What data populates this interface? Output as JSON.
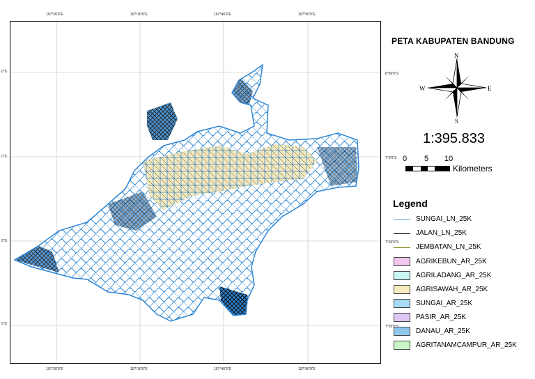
{
  "map": {
    "title": "PETA KABUPATEN BANDUNG",
    "scale_text": "1:395.833",
    "scalebar": {
      "labels": [
        "0",
        "5",
        "10"
      ],
      "unit": "Kilometers"
    },
    "north_arrow": {
      "n": "N",
      "s": "S",
      "e": "E",
      "w": "W",
      "icon": "compass-rose-icon"
    },
    "graticule": {
      "longitudes_top": [
        "107°20'0\"E",
        "107°30'0\"E",
        "107°40'0\"E",
        "107°50'0\"E"
      ],
      "longitudes_bottom": [
        "107°20'0\"E",
        "107°30'0\"E",
        "107°40'0\"E",
        "107°50'0\"E"
      ],
      "latitudes_right": [
        "6°50'0\"S",
        "7°0'0\"S",
        "7°10'0\"S",
        "7°20'0\"S"
      ],
      "latitudes_left": [
        "0\"S",
        "0\"S",
        "0\"S",
        "0\"S"
      ]
    },
    "colors": {
      "river_line": "#3d8fd6",
      "road_line": "#000000",
      "bridge_line": "#9a9a2a",
      "base_fill": "#cfe6f5",
      "sawah_fill": "#f4e8b8"
    }
  },
  "legend": {
    "title": "Legend",
    "items": [
      {
        "label": "SUNGAI_LN_25K",
        "kind": "line",
        "color": "#5aa6e0"
      },
      {
        "label": "JALAN_LN_25K",
        "kind": "line",
        "color": "#000000"
      },
      {
        "label": "JEMBATAN_LN_25K",
        "kind": "line",
        "color": "#8a8a1e"
      },
      {
        "label": "AGRIKEBUN_AR_25K",
        "kind": "box",
        "color": "#f2c6ee"
      },
      {
        "label": "AGRILADANG_AR_25K",
        "kind": "box",
        "color": "#c9f7f2"
      },
      {
        "label": "AGRISAWAH_AR_25K",
        "kind": "box",
        "color": "#f8ecc0"
      },
      {
        "label": "SUNGAI_AR_25K",
        "kind": "box",
        "color": "#a7dcf2"
      },
      {
        "label": "PASIR_AR_25K",
        "kind": "box",
        "color": "#dcc6f2"
      },
      {
        "label": "DANAU_AR_25K",
        "kind": "box",
        "color": "#8fc6ee"
      },
      {
        "label": "AGRITANAMCAMPUR_AR_25K",
        "kind": "box",
        "color": "#c8f5c6"
      }
    ]
  }
}
